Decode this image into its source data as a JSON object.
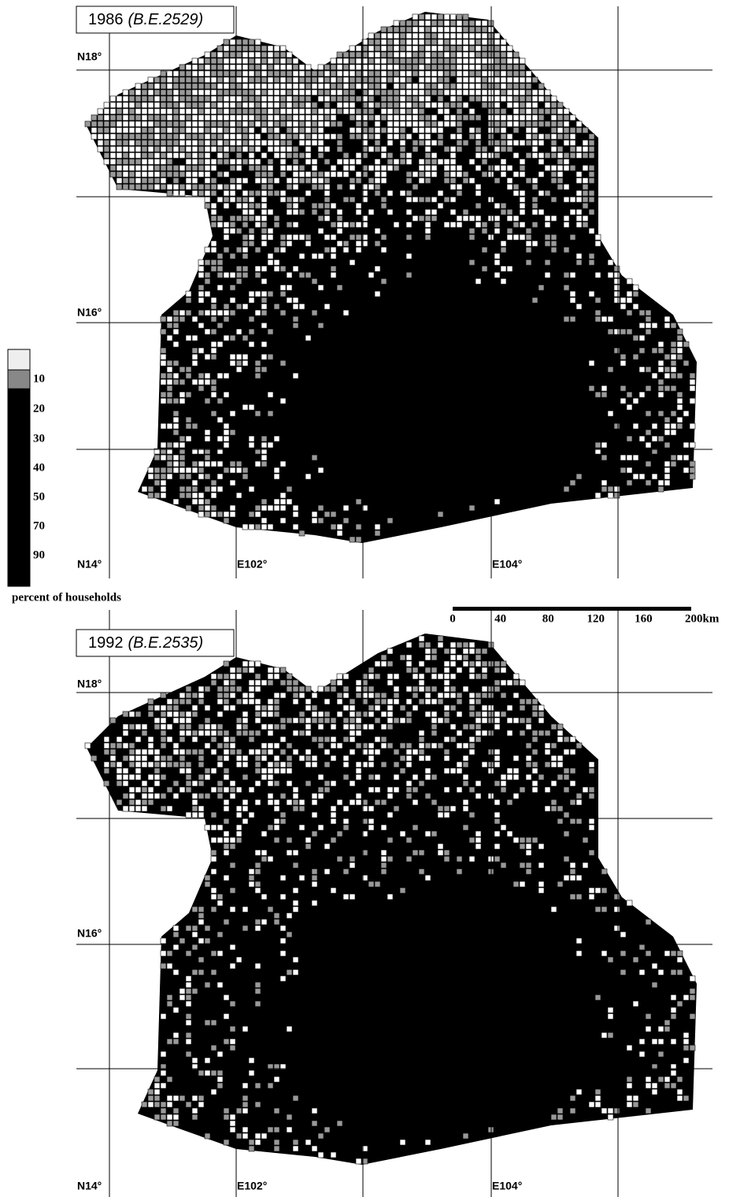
{
  "legend": {
    "labels": [
      "10",
      "20",
      "30",
      "40",
      "50",
      "70",
      "90"
    ],
    "caption": "percent of households"
  },
  "scale_bar": {
    "labels": [
      "0",
      "40",
      "80",
      "120",
      "160",
      "200km"
    ]
  },
  "maps": [
    {
      "year": "1986",
      "era": "(B.E.2529)",
      "lat_labels": [
        "N18°",
        "N16°",
        "N14°"
      ],
      "lon_labels": [
        "E102°",
        "E104°"
      ]
    },
    {
      "year": "1992",
      "era": "(B.E.2535)",
      "lat_labels": [
        "N18°",
        "N16°",
        "N14°"
      ],
      "lon_labels": [
        "E102°",
        "E104°"
      ]
    }
  ]
}
